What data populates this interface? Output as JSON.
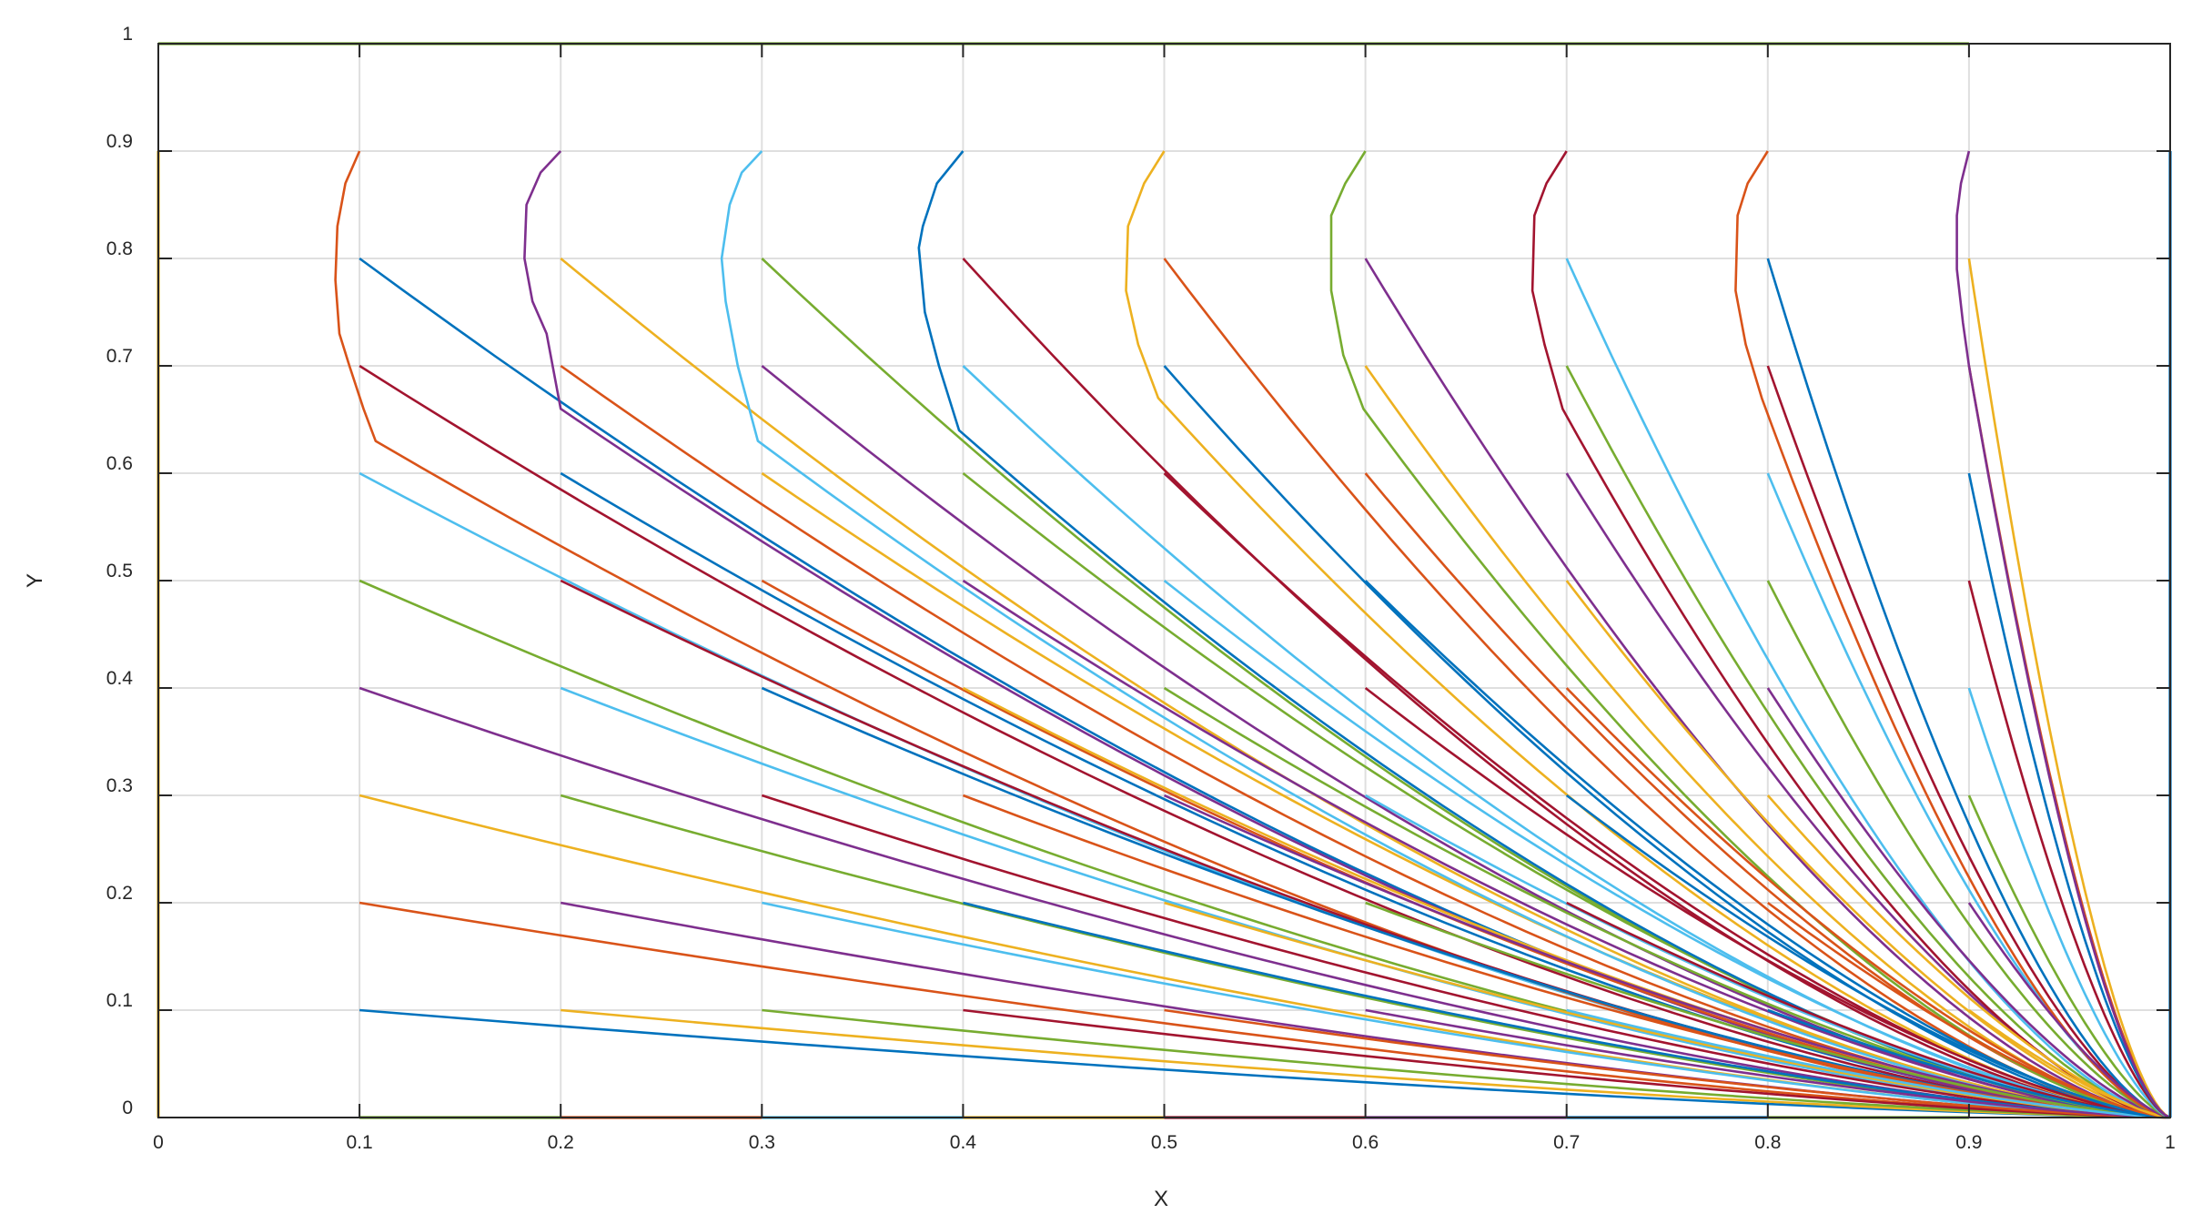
{
  "chart_data": {
    "type": "line",
    "title": "",
    "xlabel": "X",
    "ylabel": "Y",
    "xlim": [
      0,
      1
    ],
    "ylim": [
      0,
      1
    ],
    "grid": true,
    "x_ticks": [
      0,
      0.1,
      0.2,
      0.3,
      0.4,
      0.5,
      0.6,
      0.7,
      0.8,
      0.9,
      1
    ],
    "y_ticks": [
      0,
      0.1,
      0.2,
      0.3,
      0.4,
      0.5,
      0.6,
      0.7,
      0.8,
      0.9,
      1
    ],
    "x_tick_labels": [
      "0",
      "0.1",
      "0.2",
      "0.3",
      "0.4",
      "0.5",
      "0.6",
      "0.7",
      "0.8",
      "0.9",
      "1"
    ],
    "y_tick_labels": [
      "0",
      "0.1",
      "0.2",
      "0.3",
      "0.4",
      "0.5",
      "0.6",
      "0.7",
      "0.8",
      "0.9",
      "1"
    ],
    "color_order": [
      "#0072bd",
      "#d95319",
      "#edb120",
      "#7e2f8e",
      "#77ac30",
      "#4dbeee",
      "#a2142f"
    ],
    "start_x": [
      0.1,
      0.2,
      0.3,
      0.4,
      0.5,
      0.6,
      0.7,
      0.8,
      0.9
    ],
    "start_y": [
      0.1,
      0.2,
      0.3,
      0.4,
      0.5,
      0.6,
      0.7,
      0.8,
      0.9
    ],
    "end_point": [
      1,
      0
    ],
    "boundary_lines": [
      {
        "x": [
          0,
          0
        ],
        "y": [
          0,
          0.9
        ],
        "color": "#edb120"
      },
      {
        "x": [
          0,
          0.9
        ],
        "y": [
          1,
          1
        ],
        "color": "#77ac30"
      },
      {
        "x": [
          1,
          1
        ],
        "y": [
          0,
          0.9
        ],
        "color": "#0072bd"
      },
      {
        "x": [
          0.1,
          0.2
        ],
        "y": [
          0,
          0
        ],
        "color": "#77ac30"
      },
      {
        "x": [
          0.2,
          0.3
        ],
        "y": [
          0,
          0
        ],
        "color": "#d95319"
      },
      {
        "x": [
          0.3,
          0.4
        ],
        "y": [
          0,
          0
        ],
        "color": "#4dbeee"
      },
      {
        "x": [
          0.4,
          0.5
        ],
        "y": [
          0,
          0
        ],
        "color": "#edb120"
      },
      {
        "x": [
          0.5,
          0.6
        ],
        "y": [
          0,
          0
        ],
        "color": "#a2142f"
      },
      {
        "x": [
          0.6,
          0.7
        ],
        "y": [
          0,
          0
        ],
        "color": "#7e2f8e"
      },
      {
        "x": [
          0.7,
          0.8
        ],
        "y": [
          0,
          0
        ],
        "color": "#0072bd"
      },
      {
        "x": [
          0.8,
          0.9
        ],
        "y": [
          0,
          0
        ],
        "color": "#77ac30"
      }
    ],
    "top_curves": [
      {
        "x": [
          0.1,
          0.093,
          0.089,
          0.088,
          0.09,
          0.095,
          0.102,
          0.108
        ],
        "y": [
          0.9,
          0.87,
          0.83,
          0.78,
          0.73,
          0.7,
          0.66,
          0.63
        ]
      },
      {
        "x": [
          0.2,
          0.19,
          0.183,
          0.182,
          0.186,
          0.193,
          0.2
        ],
        "y": [
          0.9,
          0.88,
          0.85,
          0.8,
          0.76,
          0.73,
          0.66
        ]
      },
      {
        "x": [
          0.3,
          0.29,
          0.284,
          0.28,
          0.282,
          0.288,
          0.298
        ],
        "y": [
          0.9,
          0.88,
          0.85,
          0.8,
          0.76,
          0.7,
          0.63
        ]
      },
      {
        "x": [
          0.4,
          0.387,
          0.38,
          0.378,
          0.381,
          0.388,
          0.398
        ],
        "y": [
          0.9,
          0.87,
          0.83,
          0.81,
          0.75,
          0.7,
          0.64
        ]
      },
      {
        "x": [
          0.5,
          0.49,
          0.482,
          0.481,
          0.487,
          0.497
        ],
        "y": [
          0.9,
          0.87,
          0.83,
          0.77,
          0.72,
          0.67
        ]
      },
      {
        "x": [
          0.6,
          0.59,
          0.583,
          0.583,
          0.589,
          0.599
        ],
        "y": [
          0.9,
          0.87,
          0.84,
          0.77,
          0.71,
          0.66
        ]
      },
      {
        "x": [
          0.7,
          0.69,
          0.684,
          0.683,
          0.689,
          0.698
        ],
        "y": [
          0.9,
          0.87,
          0.84,
          0.77,
          0.72,
          0.66
        ]
      },
      {
        "x": [
          0.8,
          0.79,
          0.785,
          0.784,
          0.789,
          0.797
        ],
        "y": [
          0.9,
          0.87,
          0.84,
          0.77,
          0.72,
          0.67
        ]
      },
      {
        "x": [
          0.9,
          0.896,
          0.894,
          0.894,
          0.897,
          0.9
        ],
        "y": [
          0.9,
          0.87,
          0.84,
          0.79,
          0.74,
          0.7
        ]
      }
    ],
    "series_description": "Trajectory lines starting at every grid point (x0 in 0.1..0.9, y0 in 0.1..0.9) and converging to (1, 0)"
  }
}
